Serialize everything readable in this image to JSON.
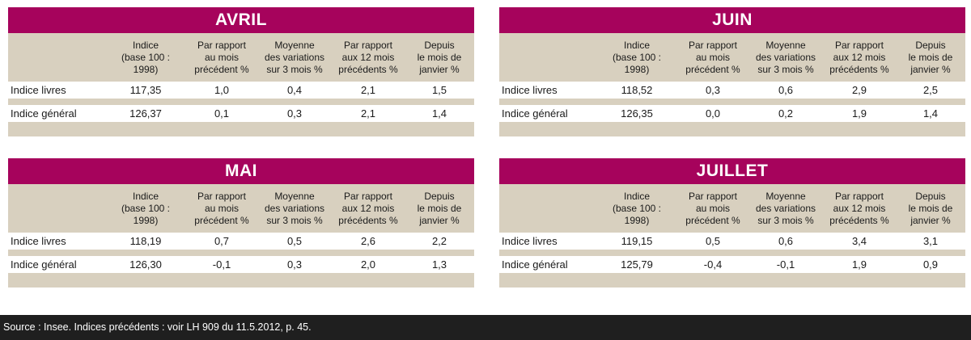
{
  "headers": [
    "",
    "Indice\n(base 100 :\n1998)",
    "Par rapport\nau mois\nprécédent %",
    "Moyenne\ndes variations\nsur 3 mois %",
    "Par rapport\naux 12 mois\nprécédents %",
    "Depuis\nle mois de\njanvier %"
  ],
  "panels": [
    {
      "title": "AVRIL",
      "rows": [
        {
          "label": "Indice livres",
          "values": [
            "117,35",
            "1,0",
            "0,4",
            "2,1",
            "1,5"
          ]
        },
        {
          "label": "Indice général",
          "values": [
            "126,37",
            "0,1",
            "0,3",
            "2,1",
            "1,4"
          ]
        }
      ]
    },
    {
      "title": "JUIN",
      "rows": [
        {
          "label": "Indice livres",
          "values": [
            "118,52",
            "0,3",
            "0,6",
            "2,9",
            "2,5"
          ]
        },
        {
          "label": "Indice général",
          "values": [
            "126,35",
            "0,0",
            "0,2",
            "1,9",
            "1,4"
          ]
        }
      ]
    },
    {
      "title": "MAI",
      "rows": [
        {
          "label": "Indice livres",
          "values": [
            "118,19",
            "0,7",
            "0,5",
            "2,6",
            "2,2"
          ]
        },
        {
          "label": "Indice général",
          "values": [
            "126,30",
            "-0,1",
            "0,3",
            "2,0",
            "1,3"
          ]
        }
      ]
    },
    {
      "title": "JUILLET",
      "rows": [
        {
          "label": "Indice livres",
          "values": [
            "119,15",
            "0,5",
            "0,6",
            "3,4",
            "3,1"
          ]
        },
        {
          "label": "Indice général",
          "values": [
            "125,79",
            "-0,4",
            "-0,1",
            "1,9",
            "0,9"
          ]
        }
      ]
    }
  ],
  "source": "Source : Insee. Indices précédents : voir LH 909 du 11.5.2012, p. 45.",
  "colors": {
    "title_bg": "#a6035c",
    "header_bg": "#d8d0bf",
    "footer_bg": "#1f1f1f"
  }
}
